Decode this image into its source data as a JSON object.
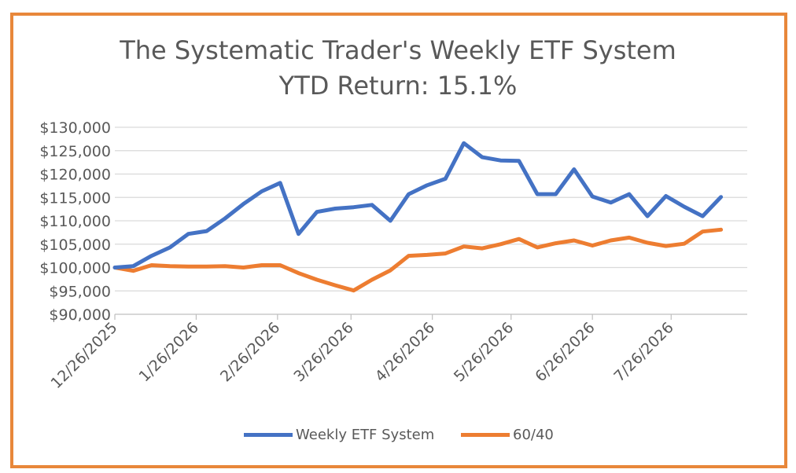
{
  "chart_data": {
    "type": "line",
    "title": "The Systematic Trader's Weekly ETF System",
    "subtitle": "YTD Return: 15.1%",
    "xlabel": "",
    "ylabel": "",
    "x": [
      "2025-12-26",
      "2026-01-02",
      "2026-01-09",
      "2026-01-16",
      "2026-01-23",
      "2026-01-30",
      "2026-02-06",
      "2026-02-13",
      "2026-02-20",
      "2026-02-27",
      "2026-03-06",
      "2026-03-13",
      "2026-03-20",
      "2026-03-27",
      "2026-04-03",
      "2026-04-10",
      "2026-04-17",
      "2026-04-24",
      "2026-05-01",
      "2026-05-08",
      "2026-05-15",
      "2026-05-22",
      "2026-05-29",
      "2026-06-05",
      "2026-06-12",
      "2026-06-19",
      "2026-06-26",
      "2026-07-03",
      "2026-07-10",
      "2026-07-17",
      "2026-07-24",
      "2026-07-31",
      "2026-08-07",
      "2026-08-14"
    ],
    "series": [
      {
        "name": "Weekly ETF System",
        "color": "#4472C4",
        "values": [
          100000,
          100300,
          102500,
          104300,
          107200,
          107800,
          110500,
          113600,
          116300,
          118100,
          107200,
          111900,
          112600,
          112900,
          113400,
          110000,
          115700,
          117600,
          119000,
          126600,
          123600,
          122900,
          122800,
          115700,
          115700,
          121000,
          115200,
          113900,
          115700,
          111000,
          115300,
          113000,
          111000,
          115100
        ]
      },
      {
        "name": "60/40",
        "color": "#ED7D31",
        "values": [
          100000,
          99300,
          100500,
          100300,
          100200,
          100200,
          100300,
          100000,
          100500,
          100500,
          98800,
          97400,
          96200,
          95100,
          97400,
          99400,
          102500,
          102700,
          103000,
          104500,
          104100,
          105000,
          106100,
          104300,
          105200,
          105800,
          104700,
          105800,
          106400,
          105300,
          104600,
          105100,
          107700,
          108100
        ]
      }
    ],
    "x_ticks": [
      "12/26/2025",
      "1/26/2026",
      "2/26/2026",
      "3/26/2026",
      "4/26/2026",
      "5/26/2026",
      "6/26/2026",
      "7/26/2026"
    ],
    "x_tick_dates": [
      "2025-12-26",
      "2026-01-26",
      "2026-02-26",
      "2026-03-26",
      "2026-04-26",
      "2026-05-26",
      "2026-06-26",
      "2026-07-26"
    ],
    "xlim": [
      "2025-12-26",
      "2026-08-24"
    ],
    "y_ticks": [
      "$90,000",
      "$95,000",
      "$100,000",
      "$105,000",
      "$110,000",
      "$115,000",
      "$120,000",
      "$125,000",
      "$130,000"
    ],
    "ylim": [
      90000,
      130000
    ],
    "ystep": 5000,
    "grid": true,
    "legend_position": "bottom"
  },
  "colors": {
    "border": "#E8873A",
    "grid": "#D9D9D9",
    "axis": "#BFBFBF",
    "text": "#595959"
  }
}
